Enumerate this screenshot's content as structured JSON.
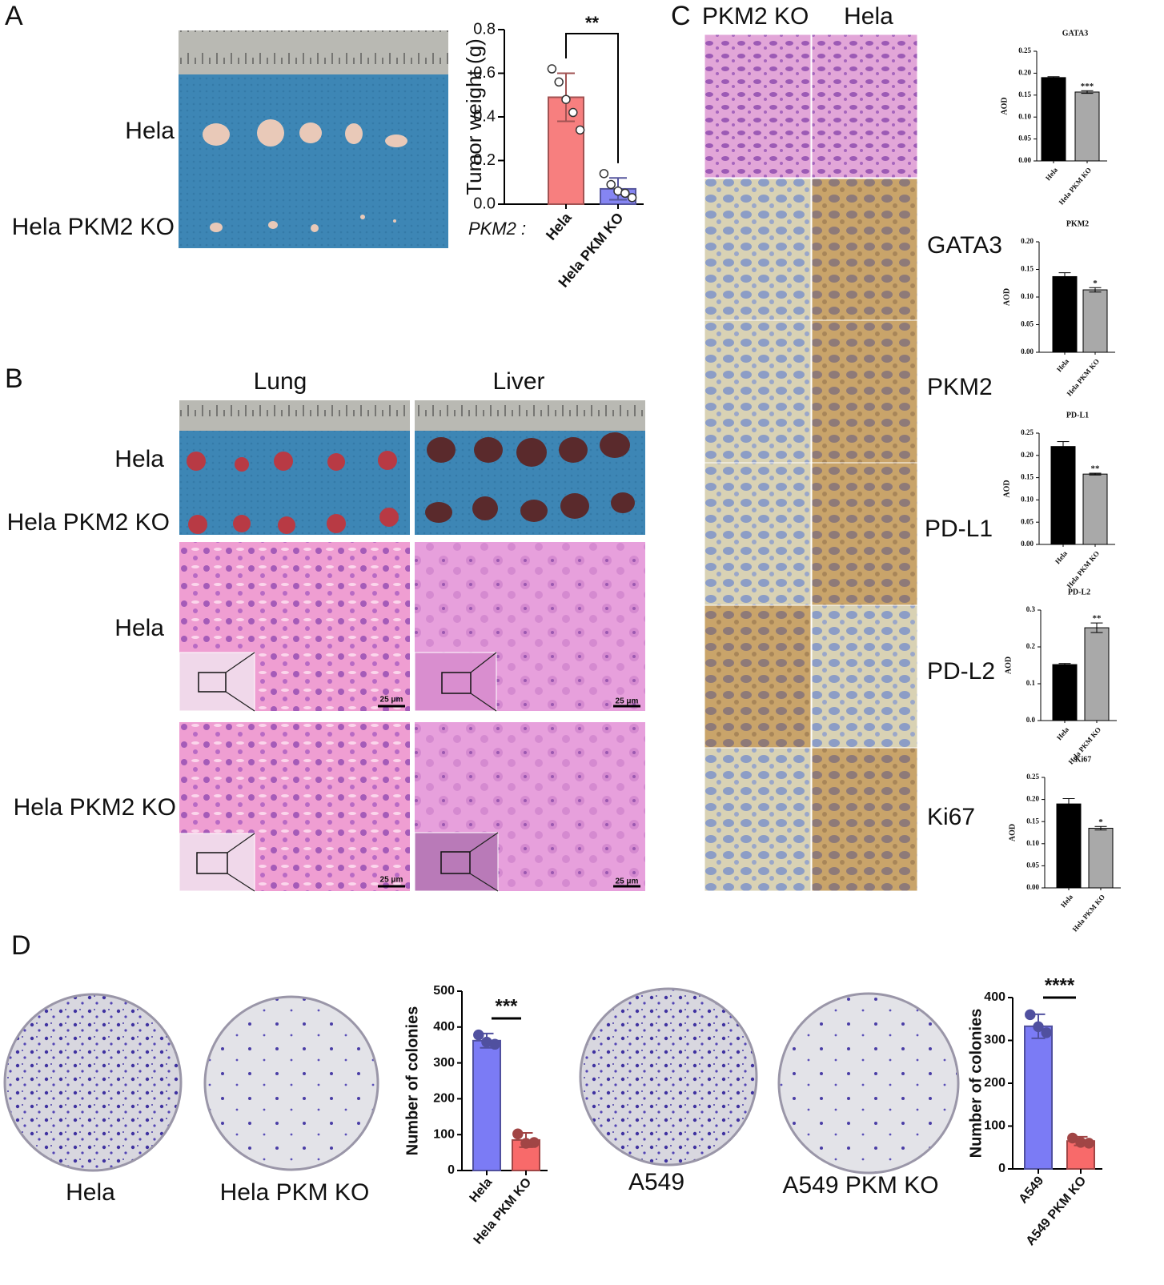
{
  "panel_labels": [
    "A",
    "B",
    "C",
    "D"
  ],
  "panel_A": {
    "row_labels": [
      "Hela",
      "Hela PKM2 KO"
    ]
  },
  "panel_B": {
    "column_labels": [
      "Lung",
      "Liver"
    ],
    "row_labels": [
      "Hela",
      "Hela PKM2 KO",
      "Hela",
      "Hela PKM2 KO"
    ],
    "scale_bar": "25 μm"
  },
  "panel_C": {
    "column_labels": [
      "PKM2 KO",
      "Hela"
    ],
    "row_labels": [
      "GATA3",
      "PKM2",
      "PD-L1",
      "PD-L2",
      "Ki67"
    ]
  },
  "panel_D": {
    "dish_labels": [
      "Hela",
      "Hela PKM KO",
      "A549",
      "A549 PKM KO"
    ]
  },
  "chart_data": [
    {
      "type": "bar",
      "ylabel": "Tumor weight (g)",
      "xlabel_prefix": "PKM2 :",
      "categories": [
        "Hela",
        "Hela PKM KO"
      ],
      "values": [
        0.49,
        0.07
      ],
      "errors": [
        0.11,
        0.05
      ],
      "points": [
        [
          0.62,
          0.56,
          0.48,
          0.42,
          0.34
        ],
        [
          0.14,
          0.09,
          0.06,
          0.05,
          0.03
        ]
      ],
      "markers": "hollow",
      "colors": [
        "#f77f7f",
        "#8585f2"
      ],
      "ylim": [
        0,
        0.8
      ],
      "yticks": [
        {
          "value": 0,
          "label": "0.0"
        },
        0.2,
        0.4,
        0.6,
        0.8
      ],
      "significance": "**"
    },
    {
      "type": "bar",
      "title": "GATA3",
      "ylabel": "AOD",
      "categories": [
        "Hela",
        "Hela PKM KO"
      ],
      "values": [
        0.19,
        0.157
      ],
      "errors": [
        0.002,
        0.003
      ],
      "colors": [
        "#000000",
        "#a9a9a9"
      ],
      "ylim": [
        0,
        0.25
      ],
      "yticks": [
        {
          "value": 0,
          "label": "0.00"
        },
        0.05,
        {
          "value": 0.1,
          "label": "0.10"
        },
        0.15,
        {
          "value": 0.2,
          "label": "0.20"
        },
        0.25
      ],
      "significance": "***"
    },
    {
      "type": "bar",
      "title": "PKM2",
      "ylabel": "AOD",
      "categories": [
        "Hela",
        "Hela PKM KO"
      ],
      "values": [
        0.137,
        0.113
      ],
      "errors": [
        0.007,
        0.004
      ],
      "colors": [
        "#000000",
        "#a9a9a9"
      ],
      "ylim": [
        0,
        0.2
      ],
      "yticks": [
        {
          "value": 0,
          "label": "0.00"
        },
        0.05,
        {
          "value": 0.1,
          "label": "0.10"
        },
        0.15,
        {
          "value": 0.2,
          "label": "0.20"
        }
      ],
      "significance": "*"
    },
    {
      "type": "bar",
      "title": "PD-L1",
      "ylabel": "AOD",
      "categories": [
        "Hela",
        "Hela PKM KO"
      ],
      "values": [
        0.22,
        0.158
      ],
      "errors": [
        0.011,
        0.002
      ],
      "colors": [
        "#000000",
        "#a9a9a9"
      ],
      "ylim": [
        0,
        0.25
      ],
      "yticks": [
        {
          "value": 0,
          "label": "0.00"
        },
        0.05,
        {
          "value": 0.1,
          "label": "0.10"
        },
        0.15,
        {
          "value": 0.2,
          "label": "0.20"
        },
        0.25
      ],
      "significance": "**"
    },
    {
      "type": "bar",
      "title": "PD-L2",
      "ylabel": "AOD",
      "categories": [
        "Hela",
        "Hela PKM KO"
      ],
      "values": [
        0.152,
        0.252
      ],
      "errors": [
        0.003,
        0.013
      ],
      "colors": [
        "#000000",
        "#a9a9a9"
      ],
      "ylim": [
        0,
        0.3
      ],
      "yticks": [
        {
          "value": 0,
          "label": "0.0"
        },
        0.1,
        0.2,
        0.3
      ],
      "significance": "**"
    },
    {
      "type": "bar",
      "title": "Ki67",
      "ylabel": "AOD",
      "categories": [
        "Hela",
        "Hela PKM KO"
      ],
      "values": [
        0.19,
        0.135
      ],
      "errors": [
        0.012,
        0.004
      ],
      "colors": [
        "#000000",
        "#a9a9a9"
      ],
      "ylim": [
        0,
        0.25
      ],
      "yticks": [
        {
          "value": 0,
          "label": "0.00"
        },
        0.05,
        {
          "value": 0.1,
          "label": "0.10"
        },
        0.15,
        {
          "value": 0.2,
          "label": "0.20"
        },
        0.25
      ],
      "significance": "*"
    },
    {
      "type": "bar",
      "ylabel": "Number of colonies",
      "categories": [
        "Hela",
        "Hela PKM KO"
      ],
      "values": [
        362,
        85
      ],
      "errors": [
        20,
        20
      ],
      "points": [
        [
          378,
          358,
          352
        ],
        [
          102,
          76,
          78
        ]
      ],
      "markers": "filled",
      "colors": [
        "#7b7bf5",
        "#f86a6a"
      ],
      "ylim": [
        0,
        500
      ],
      "yticks": [
        0,
        100,
        200,
        300,
        400,
        500
      ],
      "significance": "***"
    },
    {
      "type": "bar",
      "ylabel": "Number of colonies",
      "categories": [
        "A549",
        "A549 PKM KO"
      ],
      "values": [
        333,
        65
      ],
      "errors": [
        28,
        10
      ],
      "points": [
        [
          360,
          332,
          318
        ],
        [
          72,
          62,
          60
        ]
      ],
      "markers": "filled",
      "colors": [
        "#7b7bf5",
        "#f86a6a"
      ],
      "ylim": [
        0,
        400
      ],
      "yticks": [
        0,
        100,
        200,
        300,
        400
      ],
      "significance": "****"
    }
  ]
}
